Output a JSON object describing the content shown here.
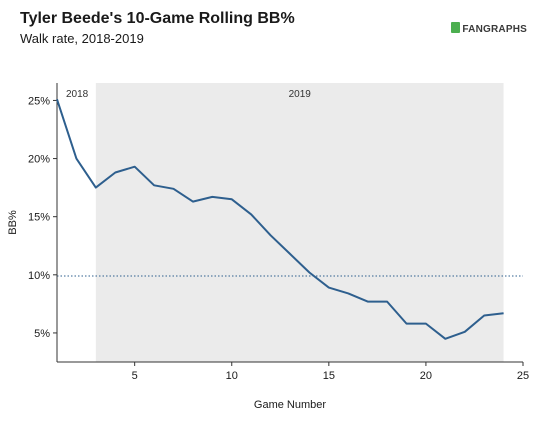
{
  "header": {
    "title": "Tyler Beede's 10-Game Rolling BB%",
    "subtitle": "Walk rate, 2018-2019",
    "logo_text": "FANGRAPHS"
  },
  "chart_data": {
    "type": "line",
    "title": "Tyler Beede's 10-Game Rolling BB%",
    "subtitle": "Walk rate, 2018-2019",
    "xlabel": "Game Number",
    "ylabel": "BB%",
    "xlim": [
      1,
      25
    ],
    "ylim": [
      2.5,
      26.5
    ],
    "xticks": [
      5,
      10,
      15,
      20,
      25
    ],
    "yticks": [
      5,
      10,
      15,
      20,
      25
    ],
    "ytick_labels": [
      "5%",
      "10%",
      "15%",
      "20%",
      "25%"
    ],
    "grid": false,
    "reference_line": {
      "y": 9.9,
      "style": "dotted"
    },
    "season_regions": [
      {
        "label": "2018",
        "x_start": 1,
        "x_end": 3,
        "shaded": false
      },
      {
        "label": "2019",
        "x_start": 3,
        "x_end": 24,
        "shaded": true
      }
    ],
    "series": [
      {
        "color": "#2e5f8e",
        "x": [
          1,
          2,
          3,
          4,
          5,
          6,
          7,
          8,
          9,
          10,
          11,
          12,
          13,
          14,
          15,
          16,
          17,
          18,
          19,
          20,
          21,
          22,
          23,
          24
        ],
        "values": [
          25.1,
          20.0,
          17.5,
          18.8,
          19.3,
          17.7,
          17.4,
          16.3,
          16.7,
          16.5,
          15.2,
          13.4,
          11.8,
          10.2,
          8.9,
          8.4,
          7.7,
          7.7,
          5.8,
          5.8,
          4.5,
          5.1,
          6.5,
          6.7
        ]
      }
    ]
  }
}
